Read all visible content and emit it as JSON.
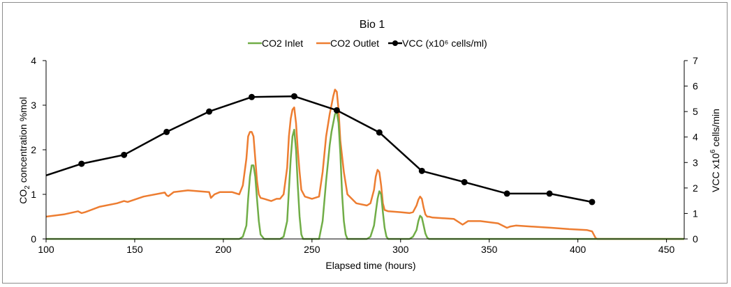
{
  "chart_data": {
    "type": "line",
    "title": "Bio 1",
    "xlabel": "Elapsed time (hours)",
    "ylabel_left": {
      "main": "CO",
      "sub": "2",
      "rest": " concentration %mol"
    },
    "ylabel_right": {
      "main": "VCC x10",
      "sup": "6",
      "rest": " cells/min"
    },
    "xlim": [
      100,
      460
    ],
    "ylim_left": [
      0,
      4
    ],
    "ylim_right": [
      0,
      7
    ],
    "x_ticks": [
      "100",
      "150",
      "200",
      "250",
      "300",
      "350",
      "400",
      "450"
    ],
    "y_left_ticks": [
      "0",
      "1",
      "2",
      "3",
      "4"
    ],
    "y_right_ticks": [
      "0",
      "1",
      "2",
      "3",
      "4",
      "5",
      "6",
      "7"
    ],
    "legend_position": "top",
    "grid": false,
    "series": [
      {
        "name": "CO2 Inlet",
        "axis": "left",
        "color": "#70ad47",
        "marker": "none",
        "x": [
          100,
          209,
          211,
          213,
          214,
          215,
          216,
          217,
          218,
          219,
          220,
          221,
          223,
          232,
          234,
          236,
          237,
          238,
          239,
          240,
          241,
          242,
          243,
          244,
          245,
          254,
          256,
          258,
          260,
          261,
          262,
          263,
          264,
          265,
          266,
          267,
          268,
          269,
          270,
          281,
          283,
          285,
          286,
          287,
          288,
          289,
          290,
          291,
          292,
          293,
          305,
          307,
          309,
          310,
          311,
          312,
          313,
          314,
          315,
          316,
          318,
          460
        ],
        "y": [
          0,
          0,
          0.05,
          0.3,
          0.9,
          1.4,
          1.65,
          1.65,
          1.4,
          0.9,
          0.4,
          0.1,
          0,
          0,
          0.05,
          0.4,
          1.1,
          1.8,
          2.3,
          2.45,
          2.0,
          1.2,
          0.5,
          0.1,
          0,
          0,
          0.4,
          1.3,
          2.1,
          2.4,
          2.6,
          2.8,
          2.85,
          2.6,
          1.9,
          1.0,
          0.4,
          0.1,
          0,
          0,
          0.05,
          0.3,
          0.6,
          0.9,
          1.07,
          1.0,
          0.6,
          0.25,
          0.05,
          0,
          0,
          0.05,
          0.2,
          0.4,
          0.52,
          0.48,
          0.3,
          0.12,
          0.03,
          0,
          0,
          0
        ]
      },
      {
        "name": "CO2 Outlet",
        "axis": "left",
        "color": "#ed7d31",
        "marker": "none",
        "x": [
          100,
          110,
          118,
          120,
          122,
          130,
          140,
          144,
          146,
          155,
          167,
          168,
          169,
          172,
          180,
          192,
          193,
          195,
          198,
          205,
          209,
          211,
          213,
          214,
          215,
          216,
          217,
          218,
          219,
          220,
          221,
          223,
          227,
          230,
          232,
          234,
          236,
          237,
          238,
          239,
          240,
          241,
          242,
          243,
          244,
          246,
          250,
          254,
          256,
          258,
          260,
          261,
          262,
          263,
          264,
          265,
          266,
          268,
          270,
          275,
          281,
          283,
          285,
          286,
          287,
          288,
          289,
          290,
          291,
          293,
          300,
          305,
          307,
          309,
          310,
          311,
          312,
          313,
          314,
          315,
          316,
          318,
          330,
          335,
          338,
          345,
          355,
          360,
          362,
          365,
          385,
          395,
          405,
          408,
          410,
          411,
          460
        ],
        "y": [
          0.5,
          0.55,
          0.62,
          0.58,
          0.6,
          0.72,
          0.8,
          0.85,
          0.83,
          0.95,
          1.04,
          0.98,
          0.96,
          1.05,
          1.09,
          1.05,
          0.92,
          1.0,
          1.05,
          1.05,
          1.0,
          1.2,
          1.8,
          2.3,
          2.4,
          2.4,
          2.3,
          1.8,
          1.3,
          1.0,
          0.92,
          0.9,
          0.85,
          0.9,
          0.9,
          1.0,
          1.6,
          2.3,
          2.7,
          2.9,
          2.95,
          2.6,
          2.0,
          1.5,
          1.1,
          0.95,
          0.9,
          0.95,
          1.5,
          2.3,
          2.8,
          3.0,
          3.2,
          3.35,
          3.3,
          2.9,
          2.2,
          1.5,
          1.0,
          0.8,
          0.75,
          0.8,
          1.1,
          1.4,
          1.55,
          1.5,
          1.2,
          0.8,
          0.65,
          0.62,
          0.6,
          0.58,
          0.6,
          0.75,
          0.88,
          0.95,
          0.9,
          0.7,
          0.55,
          0.5,
          0.5,
          0.48,
          0.45,
          0.32,
          0.4,
          0.4,
          0.35,
          0.25,
          0.28,
          0.3,
          0.25,
          0.22,
          0.2,
          0.17,
          0.02,
          0,
          0
        ]
      },
      {
        "name": "VCC (x10⁶ cells/ml)",
        "axis": "right",
        "color": "#000000",
        "marker": "circle",
        "x": [
          96,
          120,
          144,
          168,
          192,
          216,
          240,
          264,
          288,
          312,
          336,
          360,
          384,
          408
        ],
        "y": [
          2.4,
          2.95,
          3.3,
          4.2,
          5.0,
          5.57,
          5.6,
          5.05,
          4.18,
          2.67,
          2.23,
          1.78,
          1.78,
          1.45
        ]
      }
    ]
  }
}
